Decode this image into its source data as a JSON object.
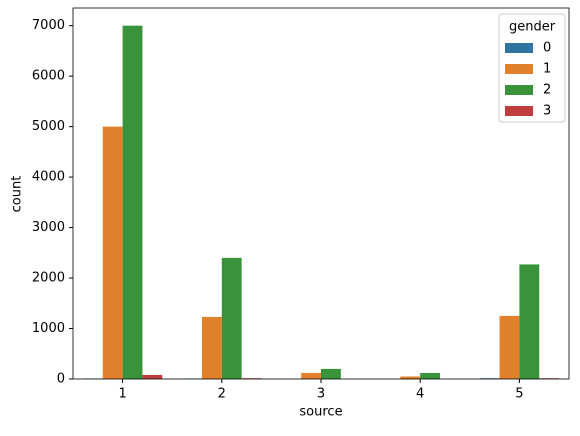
{
  "chart_data": {
    "type": "bar",
    "x_label": "source",
    "y_label": "count",
    "categories": [
      "1",
      "2",
      "3",
      "4",
      "5"
    ],
    "legend_title": "gender",
    "legend": "upper right",
    "series": [
      {
        "name": "0",
        "color": "#3274a1",
        "values": [
          10,
          10,
          0,
          0,
          15
        ]
      },
      {
        "name": "1",
        "color": "#e1812c",
        "values": [
          5000,
          1230,
          120,
          50,
          1250
        ]
      },
      {
        "name": "2",
        "color": "#3a923a",
        "values": [
          7000,
          2400,
          200,
          120,
          2270
        ]
      },
      {
        "name": "3",
        "color": "#c03d3e",
        "values": [
          80,
          15,
          0,
          0,
          15
        ]
      }
    ],
    "ylim": [
      0,
      7350
    ],
    "yticks": [
      0,
      1000,
      2000,
      3000,
      4000,
      5000,
      6000,
      7000
    ]
  }
}
